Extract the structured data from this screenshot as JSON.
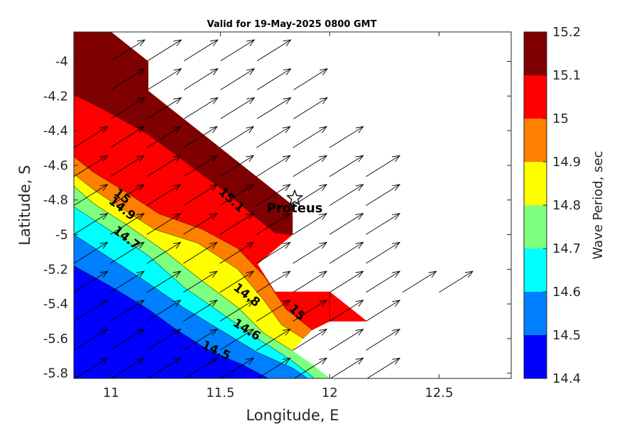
{
  "chart_data": {
    "type": "contour",
    "title": "Valid for 19-May-2025 0800 GMT",
    "xlabel": "Longitude, E",
    "ylabel": "Latitude, S",
    "xlim": [
      10.83,
      12.83
    ],
    "ylim": [
      -5.83,
      -3.83
    ],
    "xticks": [
      11,
      11.5,
      12,
      12.5
    ],
    "xtick_labels": [
      "11",
      "11.5",
      "12",
      "12.5"
    ],
    "yticks": [
      -4,
      -4.2,
      -4.4,
      -4.6,
      -4.8,
      -5,
      -5.2,
      -5.4,
      -5.6,
      -5.8
    ],
    "ytick_labels": [
      "-4",
      "-4.2",
      "-4.4",
      "-4.6",
      "-4.8",
      "-5",
      "-5.2",
      "-5.4",
      "-5.6",
      "-5.8"
    ],
    "colorbar": {
      "label": "Wave Period, sec",
      "levels": [
        14.4,
        14.5,
        14.6,
        14.7,
        14.8,
        14.9,
        15,
        15.1,
        15.2
      ],
      "tick_labels": [
        "14.4",
        "14.5",
        "14.6",
        "14.7",
        "14.8",
        "14.9",
        "15",
        "15.1",
        "15.2"
      ],
      "colors": [
        "#0000ff",
        "#007fff",
        "#00ffff",
        "#7fff7f",
        "#ffff00",
        "#ff7f00",
        "#ff0000",
        "#7f0000"
      ]
    },
    "bands": [
      {
        "range": [
          15.1,
          15.2
        ],
        "color": "#7f0000",
        "polygon": [
          [
            10.83,
            -4.19
          ],
          [
            10.83,
            -3.83
          ],
          [
            11.0,
            -3.83
          ],
          [
            11.17,
            -4.0
          ],
          [
            11.17,
            -4.17
          ],
          [
            11.33,
            -4.33
          ],
          [
            11.5,
            -4.5
          ],
          [
            11.67,
            -4.67
          ],
          [
            11.83,
            -4.83
          ],
          [
            11.83,
            -5.0
          ],
          [
            11.75,
            -4.99
          ],
          [
            11.5,
            -4.73
          ],
          [
            11.33,
            -4.57
          ],
          [
            11.17,
            -4.42
          ],
          [
            11.0,
            -4.3
          ]
        ]
      },
      {
        "range": [
          15.0,
          15.1
        ],
        "color": "#ff0000",
        "polygon": [
          [
            10.83,
            -4.55
          ],
          [
            10.83,
            -4.19
          ],
          [
            11.0,
            -4.3
          ],
          [
            11.17,
            -4.42
          ],
          [
            11.33,
            -4.57
          ],
          [
            11.5,
            -4.73
          ],
          [
            11.75,
            -4.99
          ],
          [
            11.83,
            -5.0
          ],
          [
            11.67,
            -5.17
          ],
          [
            11.75,
            -5.33
          ],
          [
            11.92,
            -5.33
          ],
          [
            12.0,
            -5.33
          ],
          [
            12.17,
            -5.5
          ],
          [
            12.0,
            -5.5
          ],
          [
            11.92,
            -5.55
          ],
          [
            11.8,
            -5.43
          ],
          [
            11.7,
            -5.24
          ],
          [
            11.58,
            -5.08
          ],
          [
            11.42,
            -4.97
          ],
          [
            11.22,
            -4.88
          ],
          [
            11.05,
            -4.74
          ],
          [
            10.92,
            -4.64
          ]
        ]
      },
      {
        "range": [
          14.9,
          15.0
        ],
        "color": "#ff7f00",
        "polygon": [
          [
            10.83,
            -4.65
          ],
          [
            10.83,
            -4.55
          ],
          [
            10.92,
            -4.64
          ],
          [
            11.05,
            -4.74
          ],
          [
            11.22,
            -4.88
          ],
          [
            11.42,
            -4.97
          ],
          [
            11.58,
            -5.08
          ],
          [
            11.7,
            -5.24
          ],
          [
            11.8,
            -5.43
          ],
          [
            11.92,
            -5.55
          ],
          [
            11.88,
            -5.6
          ],
          [
            11.78,
            -5.52
          ],
          [
            11.7,
            -5.38
          ],
          [
            11.58,
            -5.2
          ],
          [
            11.4,
            -5.05
          ],
          [
            11.2,
            -4.97
          ],
          [
            11.05,
            -4.85
          ],
          [
            10.92,
            -4.74
          ]
        ]
      },
      {
        "range": [
          14.8,
          14.9
        ],
        "color": "#ffff00",
        "polygon": [
          [
            10.83,
            -4.72
          ],
          [
            10.83,
            -4.65
          ],
          [
            10.92,
            -4.74
          ],
          [
            11.05,
            -4.85
          ],
          [
            11.2,
            -4.97
          ],
          [
            11.4,
            -5.05
          ],
          [
            11.58,
            -5.2
          ],
          [
            11.7,
            -5.38
          ],
          [
            11.78,
            -5.52
          ],
          [
            11.88,
            -5.6
          ],
          [
            11.83,
            -5.67
          ],
          [
            11.7,
            -5.57
          ],
          [
            11.58,
            -5.42
          ],
          [
            11.42,
            -5.27
          ],
          [
            11.25,
            -5.1
          ],
          [
            11.08,
            -4.95
          ],
          [
            10.92,
            -4.82
          ]
        ]
      },
      {
        "range": [
          14.7,
          14.8
        ],
        "color": "#7fff7f",
        "polygon": [
          [
            10.83,
            -4.84
          ],
          [
            10.83,
            -4.72
          ],
          [
            10.92,
            -4.82
          ],
          [
            11.08,
            -4.95
          ],
          [
            11.25,
            -5.1
          ],
          [
            11.42,
            -5.27
          ],
          [
            11.58,
            -5.42
          ],
          [
            11.7,
            -5.57
          ],
          [
            11.83,
            -5.67
          ],
          [
            11.92,
            -5.75
          ],
          [
            12.0,
            -5.83
          ],
          [
            11.93,
            -5.83
          ],
          [
            11.82,
            -5.72
          ],
          [
            11.67,
            -5.6
          ],
          [
            11.5,
            -5.45
          ],
          [
            11.33,
            -5.3
          ],
          [
            11.17,
            -5.12
          ],
          [
            11.0,
            -4.98
          ]
        ]
      },
      {
        "range": [
          14.6,
          14.7
        ],
        "color": "#00ffff",
        "polygon": [
          [
            10.83,
            -5.0
          ],
          [
            10.83,
            -4.84
          ],
          [
            11.0,
            -4.98
          ],
          [
            11.17,
            -5.12
          ],
          [
            11.33,
            -5.3
          ],
          [
            11.5,
            -5.45
          ],
          [
            11.67,
            -5.6
          ],
          [
            11.82,
            -5.72
          ],
          [
            11.93,
            -5.83
          ],
          [
            11.9,
            -5.83
          ],
          [
            11.83,
            -5.77
          ],
          [
            11.67,
            -5.68
          ],
          [
            11.5,
            -5.55
          ],
          [
            11.33,
            -5.42
          ],
          [
            11.17,
            -5.28
          ],
          [
            11.0,
            -5.14
          ]
        ]
      },
      {
        "range": [
          14.5,
          14.6
        ],
        "color": "#007fff",
        "polygon": [
          [
            10.83,
            -5.18
          ],
          [
            10.83,
            -5.0
          ],
          [
            11.0,
            -5.14
          ],
          [
            11.17,
            -5.28
          ],
          [
            11.33,
            -5.42
          ],
          [
            11.5,
            -5.55
          ],
          [
            11.67,
            -5.68
          ],
          [
            11.83,
            -5.77
          ],
          [
            11.9,
            -5.83
          ],
          [
            11.72,
            -5.83
          ],
          [
            11.6,
            -5.75
          ],
          [
            11.45,
            -5.67
          ],
          [
            11.3,
            -5.55
          ],
          [
            11.17,
            -5.43
          ],
          [
            11.0,
            -5.3
          ]
        ]
      },
      {
        "range": [
          14.4,
          14.5
        ],
        "color": "#0000ff",
        "polygon": [
          [
            10.83,
            -5.83
          ],
          [
            10.83,
            -5.18
          ],
          [
            11.0,
            -5.3
          ],
          [
            11.17,
            -5.43
          ],
          [
            11.3,
            -5.55
          ],
          [
            11.45,
            -5.67
          ],
          [
            11.6,
            -5.75
          ],
          [
            11.72,
            -5.83
          ]
        ]
      }
    ],
    "contour_lines": [
      [
        [
          10.83,
          -4.19
        ],
        [
          11.0,
          -4.3
        ],
        [
          11.17,
          -4.42
        ],
        [
          11.33,
          -4.57
        ],
        [
          11.5,
          -4.73
        ],
        [
          11.75,
          -4.99
        ],
        [
          11.83,
          -5.0
        ]
      ],
      [
        [
          10.83,
          -4.55
        ],
        [
          10.92,
          -4.64
        ],
        [
          11.05,
          -4.74
        ],
        [
          11.22,
          -4.88
        ],
        [
          11.42,
          -4.97
        ],
        [
          11.58,
          -5.08
        ],
        [
          11.7,
          -5.24
        ],
        [
          11.8,
          -5.43
        ],
        [
          11.92,
          -5.55
        ]
      ],
      [
        [
          10.83,
          -4.65
        ],
        [
          10.92,
          -4.74
        ],
        [
          11.05,
          -4.85
        ],
        [
          11.2,
          -4.97
        ],
        [
          11.4,
          -5.05
        ],
        [
          11.58,
          -5.2
        ],
        [
          11.7,
          -5.38
        ],
        [
          11.78,
          -5.52
        ],
        [
          11.88,
          -5.6
        ]
      ],
      [
        [
          10.83,
          -4.72
        ],
        [
          10.92,
          -4.82
        ],
        [
          11.08,
          -4.95
        ],
        [
          11.25,
          -5.1
        ],
        [
          11.42,
          -5.27
        ],
        [
          11.58,
          -5.42
        ],
        [
          11.7,
          -5.57
        ],
        [
          11.83,
          -5.67
        ]
      ],
      [
        [
          10.83,
          -4.84
        ],
        [
          11.0,
          -4.98
        ],
        [
          11.17,
          -5.12
        ],
        [
          11.33,
          -5.3
        ],
        [
          11.5,
          -5.45
        ],
        [
          11.67,
          -5.6
        ],
        [
          11.82,
          -5.72
        ],
        [
          11.93,
          -5.83
        ]
      ],
      [
        [
          10.83,
          -5.0
        ],
        [
          11.0,
          -5.14
        ],
        [
          11.17,
          -5.28
        ],
        [
          11.33,
          -5.42
        ],
        [
          11.5,
          -5.55
        ],
        [
          11.67,
          -5.68
        ],
        [
          11.83,
          -5.77
        ],
        [
          11.9,
          -5.83
        ]
      ],
      [
        [
          10.83,
          -5.18
        ],
        [
          11.0,
          -5.3
        ],
        [
          11.17,
          -5.43
        ],
        [
          11.3,
          -5.55
        ],
        [
          11.45,
          -5.67
        ],
        [
          11.6,
          -5.75
        ],
        [
          11.72,
          -5.83
        ]
      ],
      [
        [
          12.0,
          -5.33
        ],
        [
          12.0,
          -5.5
        ]
      ]
    ],
    "contour_labels": [
      {
        "text": "15.1",
        "lon": 11.55,
        "lat": -4.8,
        "angle": 42
      },
      {
        "text": "15",
        "lon": 11.05,
        "lat": -4.78,
        "angle": 38
      },
      {
        "text": "14.9",
        "lon": 11.05,
        "lat": -4.85,
        "angle": 38
      },
      {
        "text": "14.7",
        "lon": 11.07,
        "lat": -5.02,
        "angle": 38
      },
      {
        "text": "14.8",
        "lon": 11.62,
        "lat": -5.35,
        "angle": 38
      },
      {
        "text": "15",
        "lon": 11.85,
        "lat": -5.45,
        "angle": 45
      },
      {
        "text": "14.6",
        "lon": 11.62,
        "lat": -5.55,
        "angle": 32
      },
      {
        "text": "14.5",
        "lon": 11.48,
        "lat": -5.67,
        "angle": 25
      }
    ],
    "station": {
      "name": "Proteus",
      "lon": 11.84,
      "lat": -4.79
    },
    "vector_grid": {
      "lon_start": 10.83,
      "lon_step": 0.167,
      "lat_start": -3.83,
      "lat_step": -0.167,
      "direction_from_north_deg": 58,
      "rows": [
        [
          11.0,
          11.83
        ],
        [
          11.0,
          11.83
        ],
        [
          11.0,
          12.0
        ],
        [
          11.0,
          12.0
        ],
        [
          10.83,
          12.0
        ],
        [
          10.83,
          12.17
        ],
        [
          10.83,
          12.17
        ],
        [
          10.83,
          12.17
        ],
        [
          10.83,
          12.17
        ],
        [
          10.83,
          12.5
        ],
        [
          10.83,
          12.17
        ],
        [
          10.83,
          12.17
        ],
        [
          10.83,
          12.17
        ]
      ]
    }
  }
}
